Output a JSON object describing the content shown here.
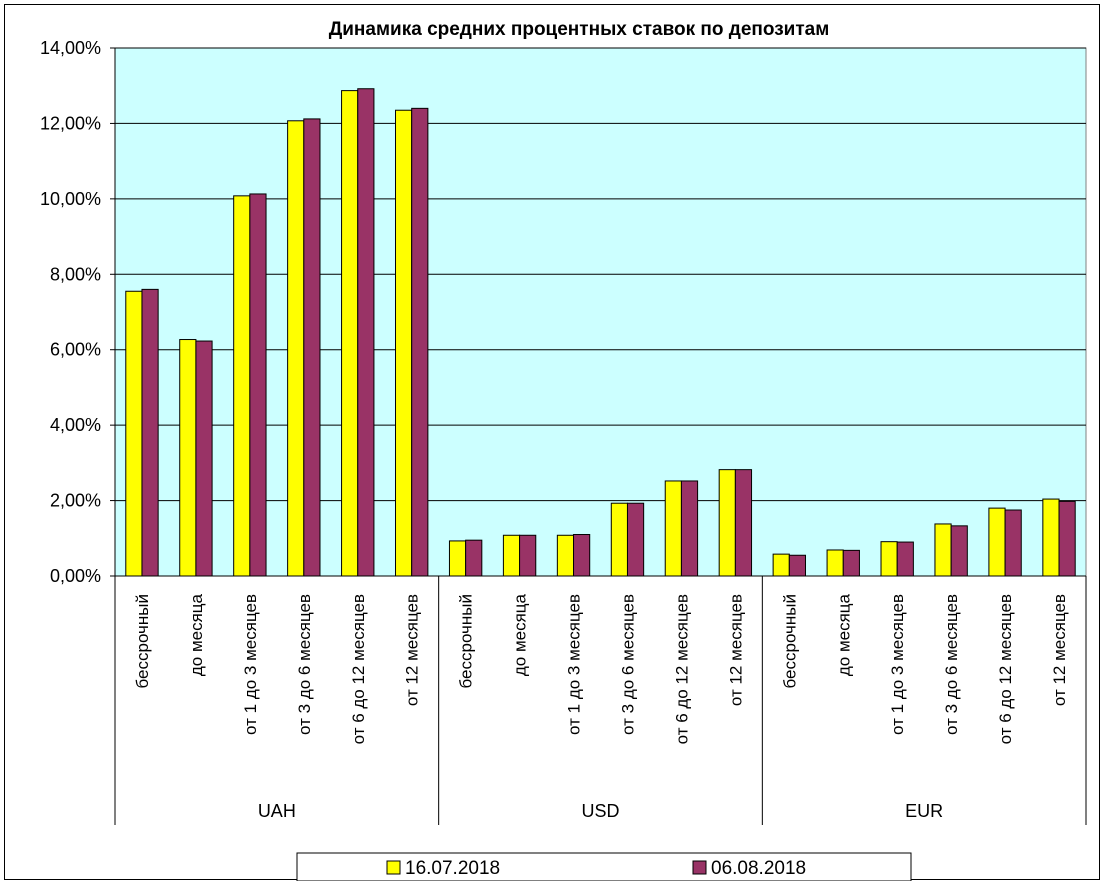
{
  "chart_data": {
    "type": "bar",
    "title": "Динамика средних процентных ставок по депозитам",
    "xlabel": "",
    "ylabel": "",
    "ylim": [
      0,
      14
    ],
    "yticks": [
      "0,00%",
      "2,00%",
      "4,00%",
      "6,00%",
      "8,00%",
      "10,00%",
      "12,00%",
      "14,00%"
    ],
    "grid": true,
    "legend_position": "bottom",
    "plot_background": "#ccffff",
    "groups": [
      {
        "name": "UAH",
        "categories": [
          "бессрочный",
          "до месяца",
          "от 1 до 3 месяцев",
          "от 3 до 6 месяцев",
          "от 6 до 12 месяцев",
          "от 12 месяцев"
        ]
      },
      {
        "name": "USD",
        "categories": [
          "бессрочный",
          "до месяца",
          "от 1 до 3 месяцев",
          "от 3 до 6 месяцев",
          "от 6 до 12 месяцев",
          "от 12 месяцев"
        ]
      },
      {
        "name": "EUR",
        "categories": [
          "бессрочный",
          "до месяца",
          "от 1 до 3 месяцев",
          "от 3 до 6 месяцев",
          "от 6 до 12 месяцев",
          "от 12 месяцев"
        ]
      }
    ],
    "series": [
      {
        "name": "16.07.2018",
        "color": "#ffff00",
        "values": [
          7.55,
          6.27,
          10.08,
          12.07,
          12.87,
          12.35,
          0.93,
          1.08,
          1.08,
          1.93,
          2.52,
          2.82,
          0.58,
          0.69,
          0.91,
          1.38,
          1.8,
          2.04
        ]
      },
      {
        "name": "06.08.2018",
        "color": "#993366",
        "values": [
          7.6,
          6.23,
          10.13,
          12.12,
          12.92,
          12.4,
          0.95,
          1.08,
          1.1,
          1.93,
          2.52,
          2.82,
          0.55,
          0.68,
          0.9,
          1.33,
          1.75,
          1.98
        ]
      }
    ]
  }
}
